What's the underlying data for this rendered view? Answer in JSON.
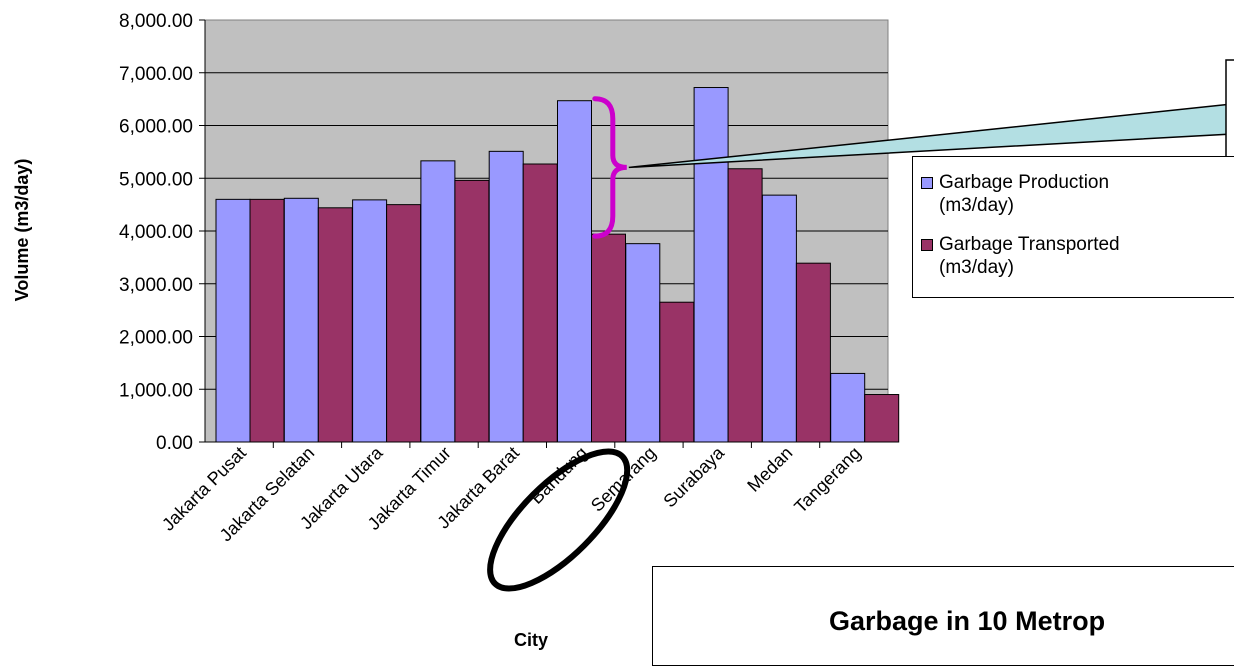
{
  "chart_data": {
    "type": "bar",
    "title": "Garbage in 10 Metrop",
    "xlabel": "City",
    "ylabel": "Volume (m3/day)",
    "ylim": [
      0,
      8000
    ],
    "yticks": [
      "0.00",
      "1,000.00",
      "2,000.00",
      "3,000.00",
      "4,000.00",
      "5,000.00",
      "6,000.00",
      "7,000.00",
      "8,000.00"
    ],
    "categories": [
      "Jakarta Pusat",
      "Jakarta Selatan",
      "Jakarta Utara",
      "Jakarta Timur",
      "Jakarta Barat",
      "Bandung",
      "Semarang",
      "Surabaya",
      "Medan",
      "Tangerang"
    ],
    "series": [
      {
        "name": "Garbage Production\n(m3/day)",
        "color": "#9999ff",
        "values": [
          4600,
          4620,
          4590,
          5330,
          5510,
          6470,
          3760,
          6720,
          4680,
          1300
        ]
      },
      {
        "name": "Garbage Transported\n(m3/day)",
        "color": "#993366",
        "values": [
          4600,
          4440,
          4500,
          4960,
          5270,
          3940,
          2650,
          5180,
          3390,
          900
        ]
      }
    ],
    "grid": true,
    "plot_background": "#c0c0c0",
    "legend_position": "right",
    "annotations": {
      "circle_highlight": "Bandung",
      "gap_brace_color": "#cc00cc",
      "callout_color": "#b3dfe3"
    }
  }
}
